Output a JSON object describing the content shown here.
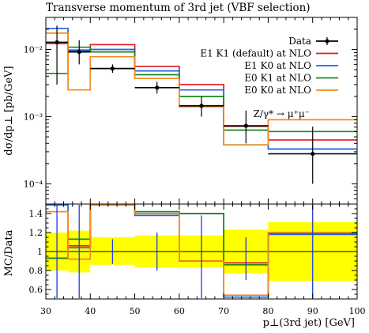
{
  "chart_data": [
    {
      "type": "line",
      "title": "Transverse momentum of 3rd jet (VBF selection)",
      "ylabel": "dσ/dp⊥ [pb/GeV]",
      "xlabel": "",
      "yscale": "log",
      "xlim": [
        30,
        100
      ],
      "ylim": [
        5e-05,
        0.03
      ],
      "process_label": "Z/γ* → μ⁺μ⁻",
      "bin_edges": [
        30,
        35,
        40,
        50,
        60,
        70,
        80,
        100
      ],
      "y_ticks": [
        {
          "value": 0.0001,
          "label": "10⁻⁴"
        },
        {
          "value": 0.001,
          "label": "10⁻³"
        },
        {
          "value": 0.01,
          "label": "10⁻²"
        }
      ],
      "legend_position": "top-right",
      "data": {
        "name": "Data",
        "color": "#000000",
        "values": [
          0.0128,
          0.0092,
          0.0052,
          0.0027,
          0.00145,
          0.00073,
          0.00028
        ],
        "err_low": [
          0.0098,
          0.0032,
          0.0007,
          0.0005,
          0.00045,
          0.00033,
          0.00018
        ],
        "err_high": [
          0.0098,
          0.0045,
          0.0008,
          0.0006,
          0.00055,
          0.0005,
          0.00043
        ]
      },
      "series": [
        {
          "name": "E1 K1 (default) at NLO",
          "color": "#e31a1c",
          "values": [
            0.0122,
            0.0098,
            0.0118,
            0.0056,
            0.003,
            0.00072,
            0.00045
          ]
        },
        {
          "name": "E1 K0 at NLO",
          "color": "#1f62e6",
          "values": [
            0.0205,
            0.0096,
            0.01,
            0.0048,
            0.0025,
            0.00038,
            0.00033
          ]
        },
        {
          "name": "E0 K1 at NLO",
          "color": "#18881c",
          "values": [
            0.0044,
            0.0108,
            0.0092,
            0.0042,
            0.002,
            0.00063,
            0.0006
          ]
        },
        {
          "name": "E0 K0 at NLO",
          "color": "#f28b1c",
          "values": [
            0.0175,
            0.0025,
            0.0078,
            0.0037,
            0.0014,
            0.00038,
            0.0009
          ]
        }
      ]
    },
    {
      "type": "line",
      "ylabel": "MC/Data",
      "xlabel": "p⊥(3rd jet) [GeV]",
      "xlim": [
        30,
        100
      ],
      "ylim": [
        0.5,
        1.5
      ],
      "y_ticks": [
        {
          "value": 0.6,
          "label": "0.6"
        },
        {
          "value": 0.8,
          "label": "0.8"
        },
        {
          "value": 1.0,
          "label": "1"
        },
        {
          "value": 1.2,
          "label": "1.2"
        },
        {
          "value": 1.4,
          "label": "1.4"
        }
      ],
      "x_ticks": [
        {
          "value": 30,
          "label": "30"
        },
        {
          "value": 40,
          "label": "40"
        },
        {
          "value": 50,
          "label": "50"
        },
        {
          "value": 60,
          "label": "60"
        },
        {
          "value": 70,
          "label": "70"
        },
        {
          "value": 80,
          "label": "80"
        },
        {
          "value": 90,
          "label": "90"
        },
        {
          "value": 100,
          "label": "100"
        }
      ],
      "band_color": "#ffff00",
      "band": {
        "low": [
          0.8,
          0.78,
          0.86,
          0.83,
          0.83,
          0.77,
          0.69
        ],
        "high": [
          1.2,
          1.22,
          1.15,
          1.17,
          1.17,
          1.23,
          1.31
        ]
      },
      "series": [
        {
          "name": "E1 K1 (default) at NLO",
          "color": "#e31a1c",
          "values": [
            0.93,
            1.06,
            1.55,
            1.4,
            0.9,
            0.88,
            1.19
          ]
        },
        {
          "name": "E1 K0 at NLO",
          "color": "#1f62e6",
          "values": [
            1.55,
            1.04,
            1.55,
            1.38,
            1.4,
            0.52,
            1.18
          ]
        },
        {
          "name": "E0 K1 at NLO",
          "color": "#18881c",
          "values": [
            0.93,
            1.13,
            1.55,
            1.42,
            1.4,
            0.86,
            1.2
          ]
        },
        {
          "name": "E0 K0 at NLO",
          "color": "#f28b1c",
          "values": [
            1.42,
            0.92,
            1.52,
            1.4,
            0.9,
            0.54,
            1.2
          ]
        }
      ],
      "data_errors": {
        "centers": [
          32.5,
          37.5,
          45,
          55,
          65,
          75,
          90
        ],
        "low": [
          0.5,
          0.5,
          0.87,
          0.8,
          0.5,
          0.7,
          0.5
        ],
        "high": [
          1.5,
          1.5,
          1.13,
          1.2,
          1.38,
          1.15,
          1.5
        ]
      }
    }
  ]
}
